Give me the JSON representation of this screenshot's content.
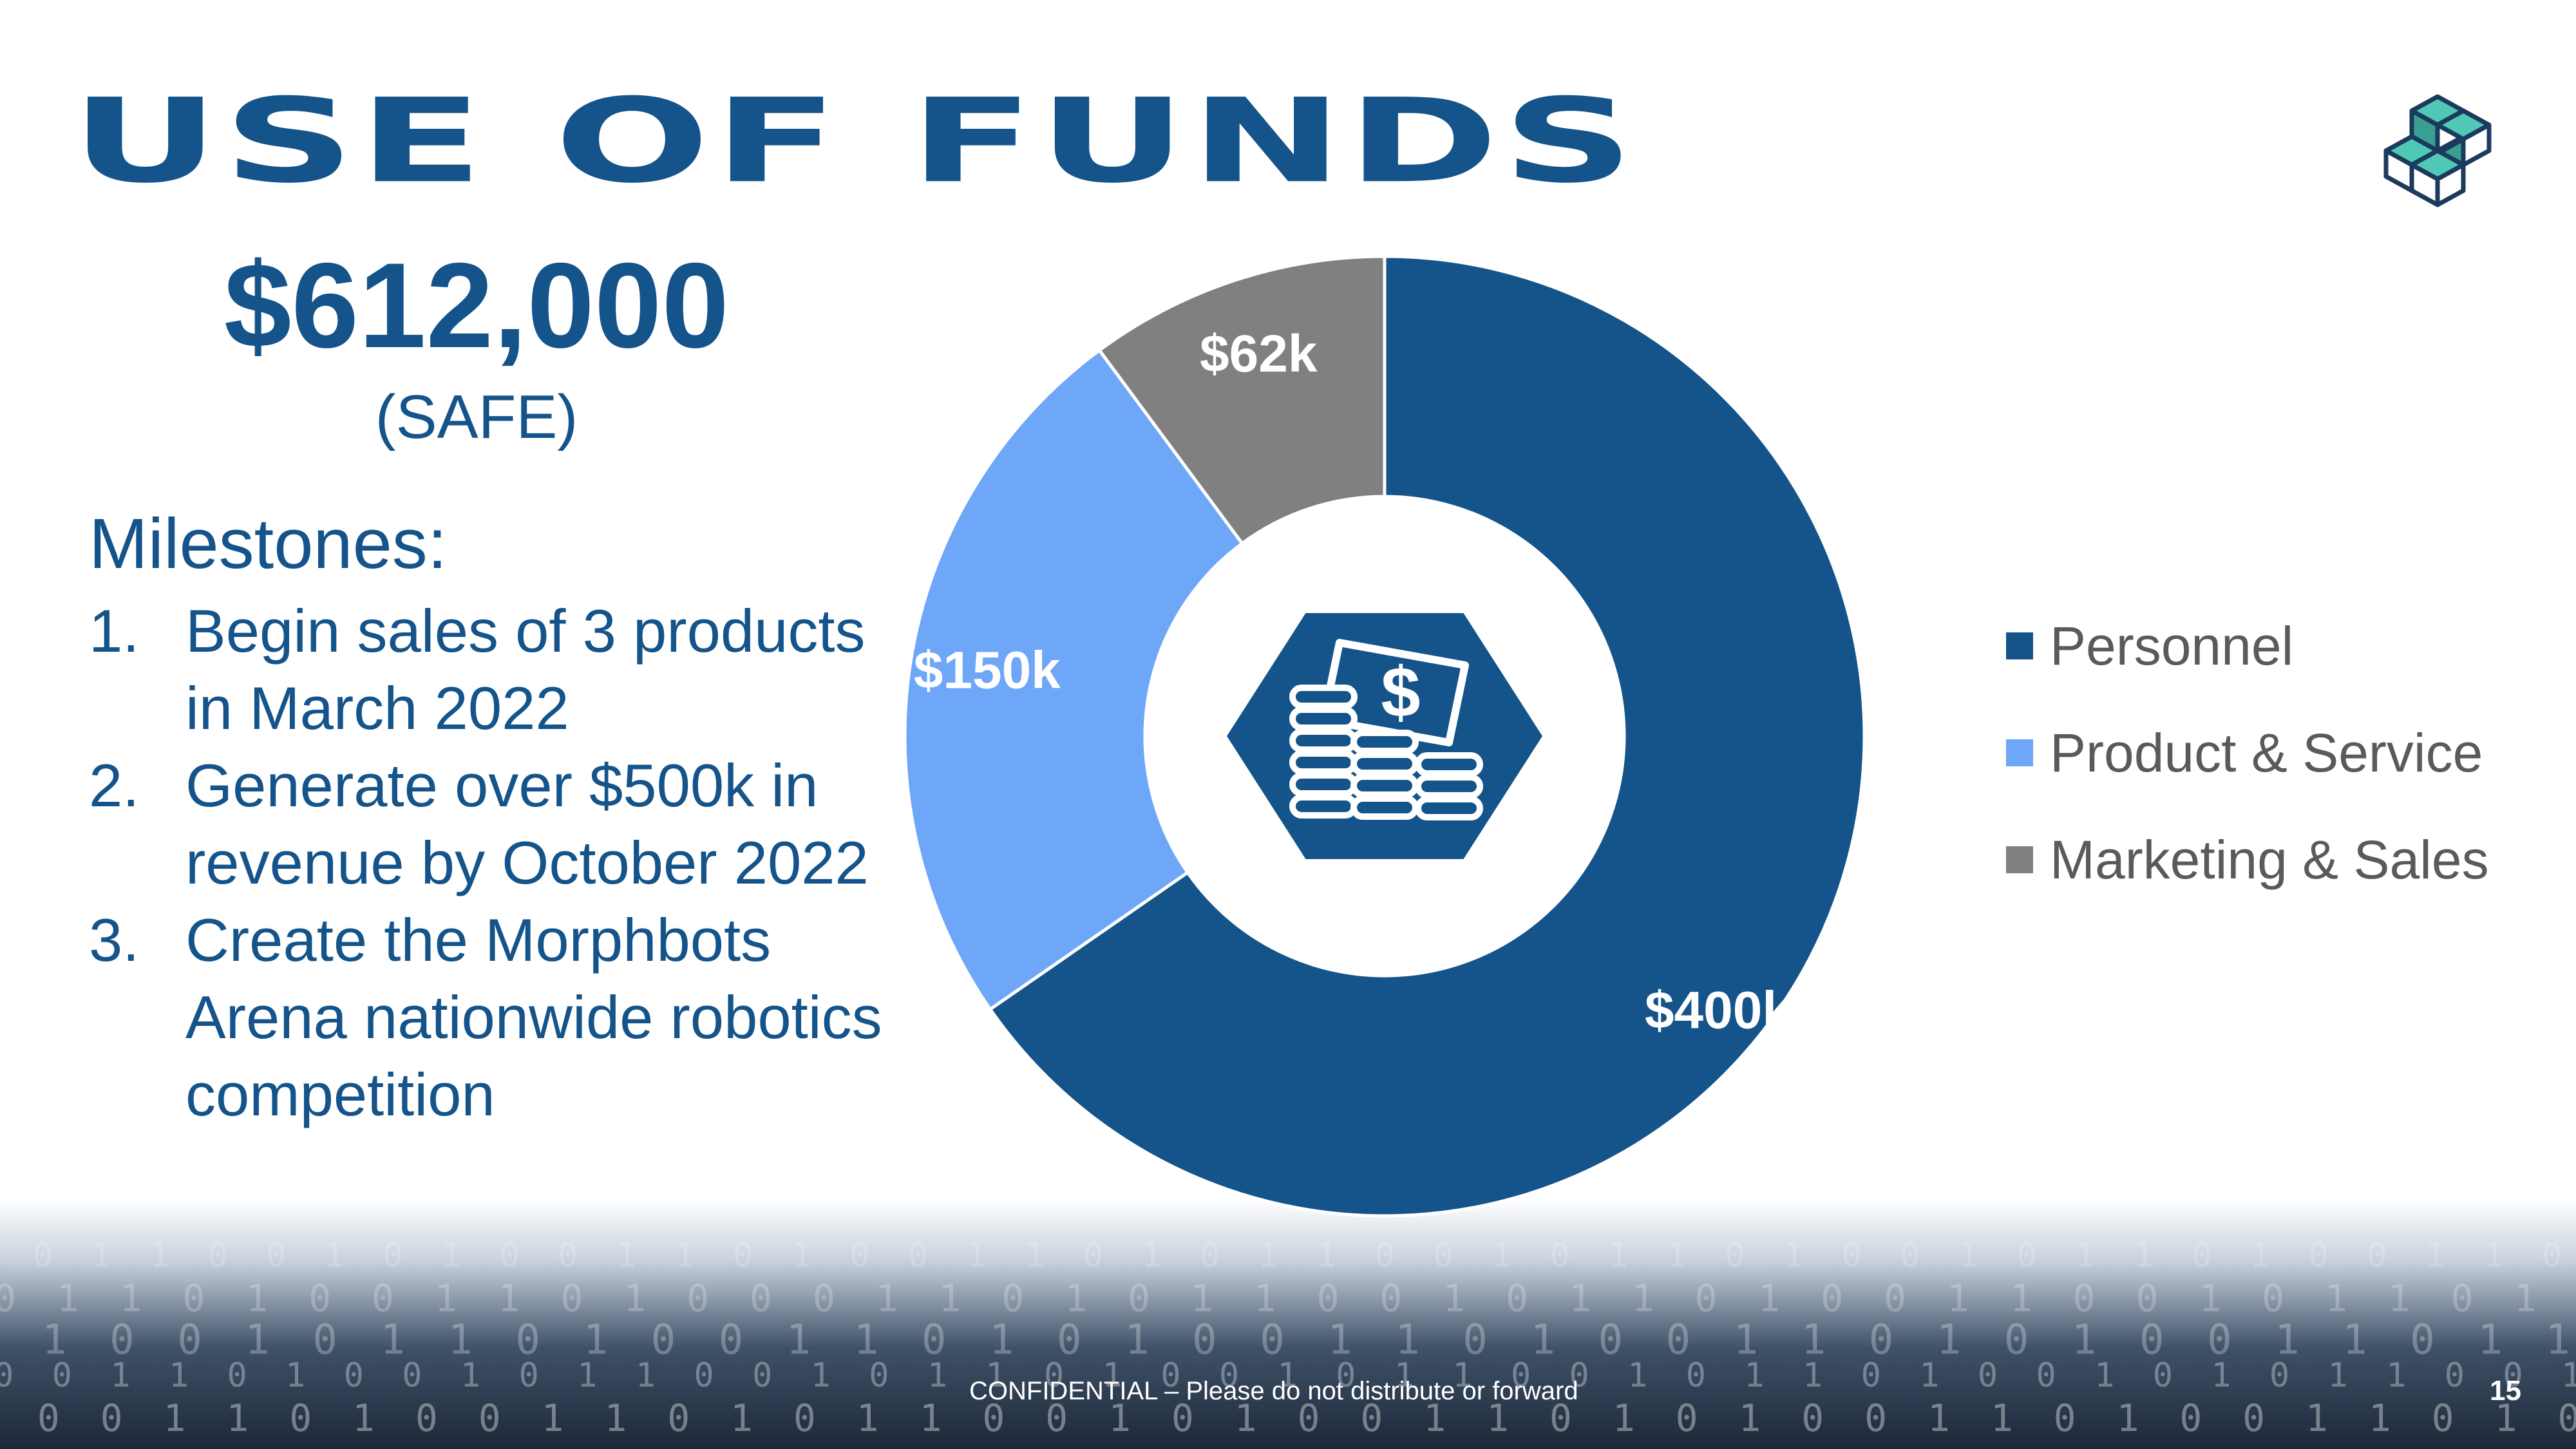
{
  "header": {
    "title": "USE OF FUNDS"
  },
  "raise": {
    "amount": "$612,000",
    "type": "(SAFE)"
  },
  "milestones": {
    "heading": "Milestones:",
    "items": [
      {
        "num": "1.",
        "text": "Begin sales of 3 products in March 2022"
      },
      {
        "num": "2.",
        "text": "Generate over $500k in revenue by October 2022"
      },
      {
        "num": "3.",
        "text": "Create the Morphbots Arena nationwide robotics competition"
      }
    ]
  },
  "chart_data": {
    "type": "pie",
    "variant": "donut",
    "categories": [
      "Personnel",
      "Product & Service",
      "Marketing & Sales"
    ],
    "values": [
      400,
      150,
      62
    ],
    "unit": "k USD",
    "data_labels": [
      "$400k",
      "$150k",
      "$62k"
    ],
    "colors": [
      "#14548a",
      "#6ea6f8",
      "#808080"
    ],
    "legend_position": "right",
    "center_icon": "money-coins-icon"
  },
  "footer": {
    "confidential": "CONFIDENTIAL – Please do not distribute or forward",
    "page_number": "15"
  },
  "logo": {
    "icon": "stacked-cubes-logo"
  },
  "background": {
    "binary_rows": [
      "1 0 1 1 0 0 1 0 1 0 0 1 1 0 1 0 0 1 1 0 1 0 1 1 0 0 1 0 1 1 0 1 0 0 1 0 1 1 0 1 0 0 1 1 0 1 0 1 0 0",
      "0 1 1 0 1 0 0 1 1 0 1 0 0 0 1 1 0 1 0 1 1 0 0 1 0 1 1 0 1 0 0 1 1 0 0 1 0 1 1 0 1 0 0 1 1 0 1 0 1 1",
      "1 1 0 0 1 0 1 1 0 1 0 0 1 1 0 1 0 1 0 0 1 1 0 1 0 0 1 1 0 1 0 1 0 0 1 1 0 1 1 0 0 1 0 1 1 0 0 1 0 1",
      "0 0 1 1 0 1 0 0 1 0 1 1 0 0 1 0 1 1 0 1 0 0 1 0 1 1 0 0 1 0 1 1 0 1 0 0 1 0 1 0 1 1 0 0 1 0 1 1 0 0",
      "1 0 0 1 1 0 1 0 0 1 1 0 1 0 1 1 0 0 1 0 1 0 0 1 1 0 1 0 1 0 0 1 1 0 1 0 0 1 1 0 1 0 1 0 0 1 1 0 1 0"
    ]
  }
}
